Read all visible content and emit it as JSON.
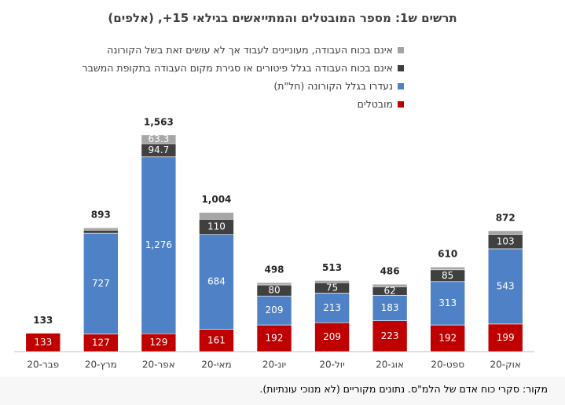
{
  "chart_data": {
    "type": "stacked-bar",
    "title": "תרשים ש1: מספר המובטלים והמתייאשים בגילאי 15+, (אלפים)",
    "source": "מקור: סקרי כוח אדם של הלמ\"ס. נתונים מקוריים (לא מנוכי עונתיות).",
    "categories": [
      "פבר-20",
      "מרץ-20",
      "אפר-20",
      "מאי-20",
      "יונ-20",
      "יול-20",
      "אוג-20",
      "ספט-20",
      "אוק-20"
    ],
    "series": [
      {
        "name": "מובטלים",
        "color": "#c00000",
        "values": [
          133,
          127,
          129,
          161,
          192,
          209,
          223,
          192,
          199
        ],
        "value_labels": [
          "133",
          "127",
          "129",
          "161",
          "192",
          "209",
          "223",
          "192",
          "199"
        ]
      },
      {
        "name": "נעדרו בגלל הקורונה (חל\"ת)",
        "color": "#4f81c7",
        "values": [
          null,
          727,
          1276,
          684,
          209,
          213,
          183,
          313,
          543
        ],
        "value_labels": [
          null,
          "727",
          "1,276",
          "684",
          "209",
          "213",
          "183",
          "313",
          "543"
        ]
      },
      {
        "name": "אינם בכוח העבודה בגלל פיטורים או סגירת מקום העבודה בתקופת המשבר",
        "color": "#404040",
        "values": [
          null,
          22,
          94.7,
          110,
          80,
          75,
          62,
          85,
          103
        ],
        "value_labels": [
          null,
          null,
          "94.7",
          "110",
          "80",
          "75",
          "62",
          "85",
          "103"
        ]
      },
      {
        "name": "אינם בכוח העבודה, מעוניינים לעבוד אך לא עושים זאת בשל הקורונה",
        "color": "#a6a6a6",
        "values": [
          null,
          17,
          63.3,
          49,
          17,
          16,
          18,
          20,
          27
        ],
        "value_labels": [
          null,
          null,
          "63.3",
          null,
          null,
          null,
          null,
          null,
          null
        ]
      }
    ],
    "totals": [
      133,
      893,
      1563,
      1004,
      498,
      513,
      486,
      610,
      872
    ],
    "total_labels": [
      "133",
      "893",
      "1,563",
      "1,004",
      "498",
      "513",
      "486",
      "610",
      "872"
    ],
    "ylim": [
      0,
      1800
    ]
  }
}
